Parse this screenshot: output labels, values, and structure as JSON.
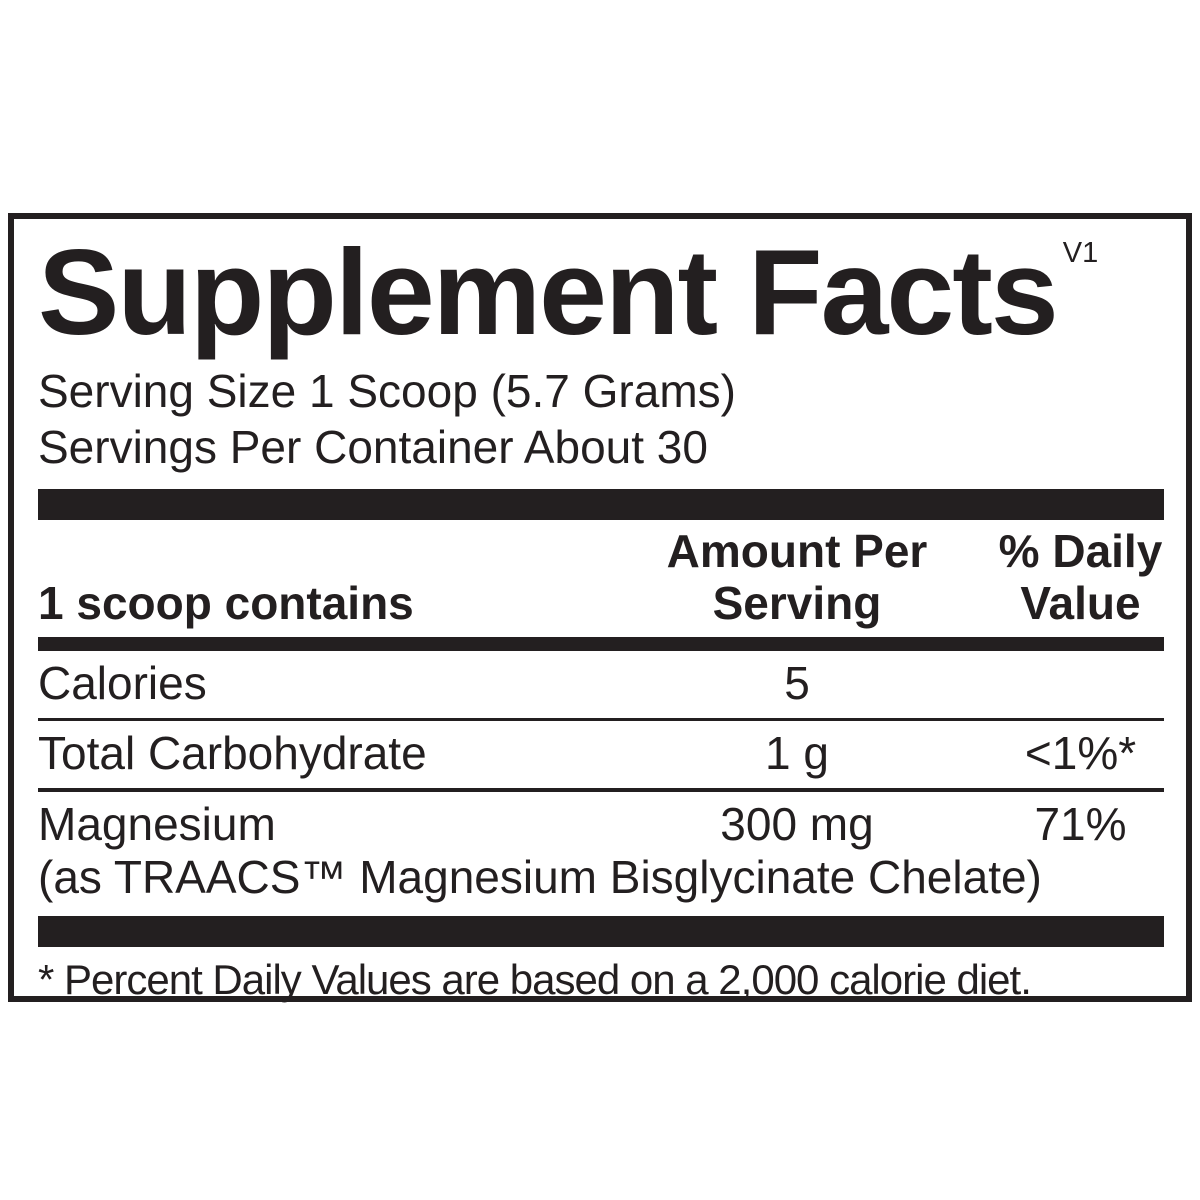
{
  "label": {
    "title": "Supplement Facts",
    "version": "V1",
    "serving_size": "Serving Size 1 Scoop (5.7 Grams)",
    "servings_per_container": "Servings Per Container About 30"
  },
  "table": {
    "header": {
      "col1": "1 scoop contains",
      "col2_line1": "Amount Per",
      "col2_line2": "Serving",
      "col3_line1": "% Daily",
      "col3_line2": "Value"
    },
    "rows": [
      {
        "name": "Calories",
        "amount": "5",
        "dv": ""
      },
      {
        "name": "Total Carbohydrate",
        "amount": "1 g",
        "dv": "<1%*"
      },
      {
        "name": "Magnesium",
        "note": "(as TRAACS™ Magnesium Bisglycinate Chelate)",
        "amount": "300 mg",
        "dv": "71%"
      }
    ]
  },
  "footnote": "* Percent Daily Values are based on a 2,000 calorie diet.",
  "colors": {
    "ink": "#231f20",
    "background": "#ffffff"
  }
}
